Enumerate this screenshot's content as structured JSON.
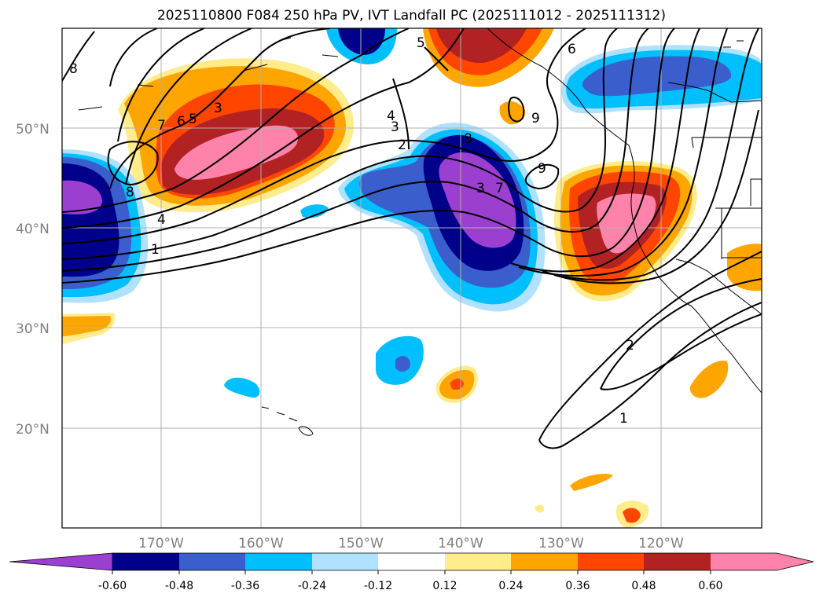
{
  "title": "2025110800 F084 250 hPa PV, IVT Landfall PC (2025111012 - 2025111312)",
  "colors": {
    "land_outline": "#000000",
    "grid": "#b0b0b0",
    "neg_060": "#9b3fd1",
    "neg_048": "#00008b",
    "neg_036": "#3a5fcd",
    "neg_024": "#00bfff",
    "neg_012": "#b0e2ff",
    "neutral": "#ffffff",
    "pos_012": "#ffec8b",
    "pos_024": "#ffa500",
    "pos_036": "#ff4500",
    "pos_048": "#b22222",
    "pos_060": "#ff82ab"
  },
  "chart_data": {
    "type": "heatmap",
    "variable": "250 hPa PV contours with IVT landfall principal-component shading",
    "lat_ticks": [
      "50°N",
      "40°N",
      "30°N",
      "20°N"
    ],
    "lon_ticks": [
      "170°W",
      "160°W",
      "150°W",
      "140°W",
      "130°W",
      "120°W"
    ],
    "lon_range": [
      -180,
      -110
    ],
    "lat_range": [
      10,
      60
    ],
    "colorbar": {
      "levels": [
        "-0.60",
        "-0.48",
        "-0.36",
        "-0.24",
        "-0.12",
        "0.12",
        "0.24",
        "0.36",
        "0.48",
        "0.60"
      ],
      "extend": "both"
    },
    "contour_labels": [
      "8",
      "7",
      "6",
      "5",
      "3",
      "8",
      "4",
      "1",
      "4",
      "3",
      "2",
      "5",
      "6",
      "8",
      "3",
      "7",
      "9",
      "9",
      "2",
      "1"
    ]
  }
}
